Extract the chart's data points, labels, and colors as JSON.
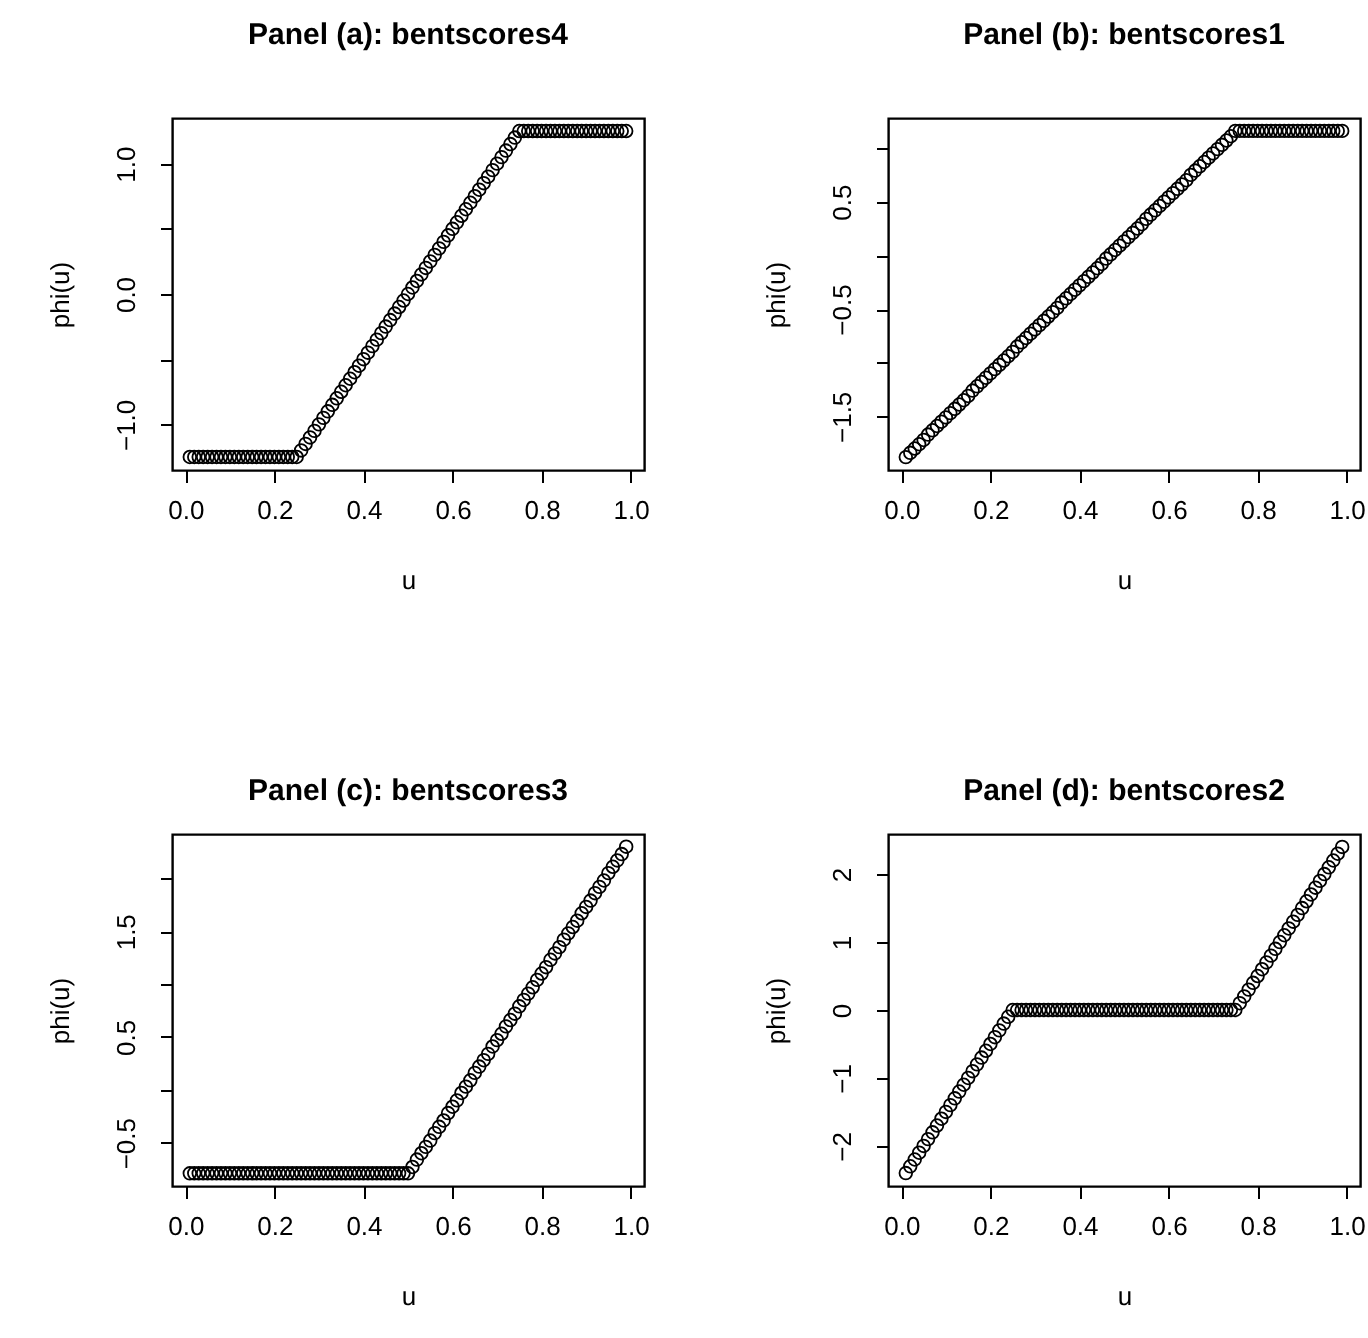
{
  "chart_data": [
    {
      "type": "scatter",
      "title": "Panel (a): bentscores4",
      "xlabel": "u",
      "ylabel": "phi(u)",
      "marker": "circle",
      "x": [
        0.01,
        0.02,
        0.03,
        0.04,
        0.05,
        0.06,
        0.07,
        0.08,
        0.09,
        0.1,
        0.11,
        0.12,
        0.13,
        0.14,
        0.15,
        0.16,
        0.17,
        0.18,
        0.19,
        0.2,
        0.21,
        0.22,
        0.23,
        0.24,
        0.25,
        0.26,
        0.27,
        0.28,
        0.29,
        0.3,
        0.31,
        0.32,
        0.33,
        0.34,
        0.35,
        0.36,
        0.37,
        0.38,
        0.39,
        0.4,
        0.41,
        0.42,
        0.43,
        0.44,
        0.45,
        0.46,
        0.47,
        0.48,
        0.49,
        0.5,
        0.51,
        0.52,
        0.53,
        0.54,
        0.55,
        0.56,
        0.57,
        0.58,
        0.59,
        0.6,
        0.61,
        0.62,
        0.63,
        0.64,
        0.65,
        0.66,
        0.67,
        0.68,
        0.69,
        0.7,
        0.71,
        0.72,
        0.73,
        0.74,
        0.75,
        0.76,
        0.77,
        0.78,
        0.79,
        0.8,
        0.81,
        0.82,
        0.83,
        0.84,
        0.85,
        0.86,
        0.87,
        0.88,
        0.89,
        0.9,
        0.91,
        0.92,
        0.93,
        0.94,
        0.95,
        0.96,
        0.97,
        0.98,
        0.99
      ],
      "series": [
        {
          "color": "#000000",
          "values": [
            -1.25,
            -1.25,
            -1.25,
            -1.25,
            -1.25,
            -1.25,
            -1.25,
            -1.25,
            -1.25,
            -1.25,
            -1.25,
            -1.25,
            -1.25,
            -1.25,
            -1.25,
            -1.25,
            -1.25,
            -1.25,
            -1.25,
            -1.25,
            -1.25,
            -1.25,
            -1.25,
            -1.25,
            -1.25,
            -1.2,
            -1.15,
            -1.1,
            -1.05,
            -1.0,
            -0.95,
            -0.9,
            -0.85,
            -0.8,
            -0.75,
            -0.7,
            -0.65,
            -0.6,
            -0.55,
            -0.5,
            -0.45,
            -0.4,
            -0.35,
            -0.3,
            -0.25,
            -0.2,
            -0.15,
            -0.1,
            -0.05,
            0,
            0.05,
            0.1,
            0.15,
            0.2,
            0.25,
            0.3,
            0.35,
            0.4,
            0.45,
            0.5,
            0.55,
            0.6,
            0.65,
            0.7,
            0.75,
            0.8,
            0.85,
            0.9,
            0.95,
            1.0,
            1.05,
            1.1,
            1.15,
            1.2,
            1.25,
            1.25,
            1.25,
            1.25,
            1.25,
            1.25,
            1.25,
            1.25,
            1.25,
            1.25,
            1.25,
            1.25,
            1.25,
            1.25,
            1.25,
            1.25,
            1.25,
            1.25,
            1.25,
            1.25,
            1.25,
            1.25,
            1.25,
            1.25,
            1.25
          ]
        }
      ],
      "xlim": [
        -0.03,
        1.03
      ],
      "ylim": [
        -1.35,
        1.35
      ],
      "xticks": [
        {
          "value": 0,
          "label": "0.0"
        },
        {
          "value": 0.2,
          "label": "0.2"
        },
        {
          "value": 0.4,
          "label": "0.4"
        },
        {
          "value": 0.6,
          "label": "0.6"
        },
        {
          "value": 0.8,
          "label": "0.8"
        },
        {
          "value": 1,
          "label": "1.0"
        }
      ],
      "yticks": [
        {
          "value": -1,
          "label": "−1.0"
        },
        {
          "value": -0.5,
          "label": null
        },
        {
          "value": 0,
          "label": "0.0"
        },
        {
          "value": 0.5,
          "label": null
        },
        {
          "value": 1,
          "label": "1.0"
        }
      ]
    },
    {
      "type": "scatter",
      "title": "Panel (b): bentscores1",
      "xlabel": "u",
      "ylabel": "phi(u)",
      "marker": "circle",
      "x": [
        0.01,
        0.02,
        0.03,
        0.04,
        0.05,
        0.06,
        0.07,
        0.08,
        0.09,
        0.1,
        0.11,
        0.12,
        0.13,
        0.14,
        0.15,
        0.16,
        0.17,
        0.18,
        0.19,
        0.2,
        0.21,
        0.22,
        0.23,
        0.24,
        0.25,
        0.26,
        0.27,
        0.28,
        0.29,
        0.3,
        0.31,
        0.32,
        0.33,
        0.34,
        0.35,
        0.36,
        0.37,
        0.38,
        0.39,
        0.4,
        0.41,
        0.42,
        0.43,
        0.44,
        0.45,
        0.46,
        0.47,
        0.48,
        0.49,
        0.5,
        0.51,
        0.52,
        0.53,
        0.54,
        0.55,
        0.56,
        0.57,
        0.58,
        0.59,
        0.6,
        0.61,
        0.62,
        0.63,
        0.64,
        0.65,
        0.66,
        0.67,
        0.68,
        0.69,
        0.7,
        0.71,
        0.72,
        0.73,
        0.74,
        0.75,
        0.76,
        0.77,
        0.78,
        0.79,
        0.8,
        0.81,
        0.82,
        0.83,
        0.84,
        0.85,
        0.86,
        0.87,
        0.88,
        0.89,
        0.9,
        0.91,
        0.92,
        0.93,
        0.94,
        0.95,
        0.96,
        0.97,
        0.98,
        0.99
      ],
      "series": [
        {
          "color": "#000000",
          "values": [
            -1.88,
            -1.84,
            -1.8,
            -1.76,
            -1.72,
            -1.67,
            -1.63,
            -1.59,
            -1.55,
            -1.51,
            -1.47,
            -1.43,
            -1.39,
            -1.35,
            -1.31,
            -1.26,
            -1.22,
            -1.18,
            -1.14,
            -1.1,
            -1.06,
            -1.02,
            -0.98,
            -0.94,
            -0.9,
            -0.85,
            -0.81,
            -0.77,
            -0.73,
            -0.69,
            -0.65,
            -0.61,
            -0.57,
            -0.53,
            -0.49,
            -0.44,
            -0.4,
            -0.36,
            -0.32,
            -0.28,
            -0.24,
            -0.2,
            -0.16,
            -0.12,
            -0.08,
            -0.03,
            0.01,
            0.05,
            0.09,
            0.13,
            0.17,
            0.21,
            0.25,
            0.29,
            0.34,
            0.38,
            0.42,
            0.46,
            0.5,
            0.54,
            0.58,
            0.62,
            0.66,
            0.7,
            0.75,
            0.79,
            0.83,
            0.87,
            0.91,
            0.95,
            0.99,
            1.03,
            1.07,
            1.11,
            1.16,
            1.16,
            1.16,
            1.16,
            1.16,
            1.16,
            1.16,
            1.16,
            1.16,
            1.16,
            1.16,
            1.16,
            1.16,
            1.16,
            1.16,
            1.16,
            1.16,
            1.16,
            1.16,
            1.16,
            1.16,
            1.16,
            1.16,
            1.16,
            1.16
          ]
        }
      ],
      "xlim": [
        -0.03,
        1.03
      ],
      "ylim": [
        -2.0,
        1.28
      ],
      "xticks": [
        {
          "value": 0,
          "label": "0.0"
        },
        {
          "value": 0.2,
          "label": "0.2"
        },
        {
          "value": 0.4,
          "label": "0.4"
        },
        {
          "value": 0.6,
          "label": "0.6"
        },
        {
          "value": 0.8,
          "label": "0.8"
        },
        {
          "value": 1,
          "label": "1.0"
        }
      ],
      "yticks": [
        {
          "value": -1.5,
          "label": "−1.5"
        },
        {
          "value": -1,
          "label": null
        },
        {
          "value": -0.5,
          "label": "−0.5"
        },
        {
          "value": 0,
          "label": null
        },
        {
          "value": 0.5,
          "label": "0.5"
        },
        {
          "value": 1,
          "label": null
        }
      ]
    },
    {
      "type": "scatter",
      "title": "Panel (c): bentscores3",
      "xlabel": "u",
      "ylabel": "phi(u)",
      "marker": "circle",
      "x": [
        0.01,
        0.02,
        0.03,
        0.04,
        0.05,
        0.06,
        0.07,
        0.08,
        0.09,
        0.1,
        0.11,
        0.12,
        0.13,
        0.14,
        0.15,
        0.16,
        0.17,
        0.18,
        0.19,
        0.2,
        0.21,
        0.22,
        0.23,
        0.24,
        0.25,
        0.26,
        0.27,
        0.28,
        0.29,
        0.3,
        0.31,
        0.32,
        0.33,
        0.34,
        0.35,
        0.36,
        0.37,
        0.38,
        0.39,
        0.4,
        0.41,
        0.42,
        0.43,
        0.44,
        0.45,
        0.46,
        0.47,
        0.48,
        0.49,
        0.5,
        0.51,
        0.52,
        0.53,
        0.54,
        0.55,
        0.56,
        0.57,
        0.58,
        0.59,
        0.6,
        0.61,
        0.62,
        0.63,
        0.64,
        0.65,
        0.66,
        0.67,
        0.68,
        0.69,
        0.7,
        0.71,
        0.72,
        0.73,
        0.74,
        0.75,
        0.76,
        0.77,
        0.78,
        0.79,
        0.8,
        0.81,
        0.82,
        0.83,
        0.84,
        0.85,
        0.86,
        0.87,
        0.88,
        0.89,
        0.9,
        0.91,
        0.92,
        0.93,
        0.94,
        0.95,
        0.96,
        0.97,
        0.98,
        0.99
      ],
      "series": [
        {
          "color": "#000000",
          "values": [
            -0.79,
            -0.79,
            -0.79,
            -0.79,
            -0.79,
            -0.79,
            -0.79,
            -0.79,
            -0.79,
            -0.79,
            -0.79,
            -0.79,
            -0.79,
            -0.79,
            -0.79,
            -0.79,
            -0.79,
            -0.79,
            -0.79,
            -0.79,
            -0.79,
            -0.79,
            -0.79,
            -0.79,
            -0.79,
            -0.79,
            -0.79,
            -0.79,
            -0.79,
            -0.79,
            -0.79,
            -0.79,
            -0.79,
            -0.79,
            -0.79,
            -0.79,
            -0.79,
            -0.79,
            -0.79,
            -0.79,
            -0.79,
            -0.79,
            -0.79,
            -0.79,
            -0.79,
            -0.79,
            -0.79,
            -0.79,
            -0.79,
            -0.79,
            -0.73,
            -0.66,
            -0.6,
            -0.54,
            -0.48,
            -0.41,
            -0.35,
            -0.29,
            -0.22,
            -0.16,
            -0.1,
            -0.03,
            0.03,
            0.09,
            0.16,
            0.22,
            0.28,
            0.34,
            0.41,
            0.47,
            0.53,
            0.6,
            0.66,
            0.72,
            0.79,
            0.85,
            0.91,
            0.97,
            1.04,
            1.1,
            1.16,
            1.23,
            1.29,
            1.35,
            1.42,
            1.48,
            1.54,
            1.6,
            1.67,
            1.73,
            1.79,
            1.86,
            1.92,
            1.98,
            2.05,
            2.11,
            2.17,
            2.23,
            2.3
          ]
        }
      ],
      "xlim": [
        -0.03,
        1.03
      ],
      "ylim": [
        -0.91,
        2.42
      ],
      "xticks": [
        {
          "value": 0,
          "label": "0.0"
        },
        {
          "value": 0.2,
          "label": "0.2"
        },
        {
          "value": 0.4,
          "label": "0.4"
        },
        {
          "value": 0.6,
          "label": "0.6"
        },
        {
          "value": 0.8,
          "label": "0.8"
        },
        {
          "value": 1,
          "label": "1.0"
        }
      ],
      "yticks": [
        {
          "value": -0.5,
          "label": "−0.5"
        },
        {
          "value": 0,
          "label": null
        },
        {
          "value": 0.5,
          "label": "0.5"
        },
        {
          "value": 1,
          "label": null
        },
        {
          "value": 1.5,
          "label": "1.5"
        },
        {
          "value": 2,
          "label": null
        }
      ]
    },
    {
      "type": "scatter",
      "title": "Panel (d): bentscores2",
      "xlabel": "u",
      "ylabel": "phi(u)",
      "marker": "circle",
      "x": [
        0.01,
        0.02,
        0.03,
        0.04,
        0.05,
        0.06,
        0.07,
        0.08,
        0.09,
        0.1,
        0.11,
        0.12,
        0.13,
        0.14,
        0.15,
        0.16,
        0.17,
        0.18,
        0.19,
        0.2,
        0.21,
        0.22,
        0.23,
        0.24,
        0.25,
        0.26,
        0.27,
        0.28,
        0.29,
        0.3,
        0.31,
        0.32,
        0.33,
        0.34,
        0.35,
        0.36,
        0.37,
        0.38,
        0.39,
        0.4,
        0.41,
        0.42,
        0.43,
        0.44,
        0.45,
        0.46,
        0.47,
        0.48,
        0.49,
        0.5,
        0.51,
        0.52,
        0.53,
        0.54,
        0.55,
        0.56,
        0.57,
        0.58,
        0.59,
        0.6,
        0.61,
        0.62,
        0.63,
        0.64,
        0.65,
        0.66,
        0.67,
        0.68,
        0.69,
        0.7,
        0.71,
        0.72,
        0.73,
        0.74,
        0.75,
        0.76,
        0.77,
        0.78,
        0.79,
        0.8,
        0.81,
        0.82,
        0.83,
        0.84,
        0.85,
        0.86,
        0.87,
        0.88,
        0.89,
        0.9,
        0.91,
        0.92,
        0.93,
        0.94,
        0.95,
        0.96,
        0.97,
        0.98,
        0.99
      ],
      "series": [
        {
          "color": "#000000",
          "values": [
            -2.4,
            -2.3,
            -2.2,
            -2.1,
            -2.0,
            -1.9,
            -1.8,
            -1.7,
            -1.6,
            -1.5,
            -1.4,
            -1.3,
            -1.2,
            -1.1,
            -1.0,
            -0.9,
            -0.8,
            -0.7,
            -0.6,
            -0.5,
            -0.4,
            -0.3,
            -0.2,
            -0.1,
            0,
            0,
            0,
            0,
            0,
            0,
            0,
            0,
            0,
            0,
            0,
            0,
            0,
            0,
            0,
            0,
            0,
            0,
            0,
            0,
            0,
            0,
            0,
            0,
            0,
            0,
            0,
            0,
            0,
            0,
            0,
            0,
            0,
            0,
            0,
            0,
            0,
            0,
            0,
            0,
            0,
            0,
            0,
            0,
            0,
            0,
            0,
            0,
            0,
            0,
            0,
            0.1,
            0.2,
            0.3,
            0.4,
            0.5,
            0.6,
            0.7,
            0.8,
            0.9,
            1.0,
            1.1,
            1.2,
            1.3,
            1.4,
            1.5,
            1.6,
            1.7,
            1.8,
            1.9,
            2.0,
            2.1,
            2.2,
            2.3,
            2.4
          ]
        }
      ],
      "xlim": [
        -0.03,
        1.03
      ],
      "ylim": [
        -2.59,
        2.59
      ],
      "xticks": [
        {
          "value": 0,
          "label": "0.0"
        },
        {
          "value": 0.2,
          "label": "0.2"
        },
        {
          "value": 0.4,
          "label": "0.4"
        },
        {
          "value": 0.6,
          "label": "0.6"
        },
        {
          "value": 0.8,
          "label": "0.8"
        },
        {
          "value": 1,
          "label": "1.0"
        }
      ],
      "yticks": [
        {
          "value": -2,
          "label": "−2"
        },
        {
          "value": -1,
          "label": "−1"
        },
        {
          "value": 0,
          "label": "0"
        },
        {
          "value": 1,
          "label": "1"
        },
        {
          "value": 2,
          "label": "2"
        }
      ]
    }
  ]
}
